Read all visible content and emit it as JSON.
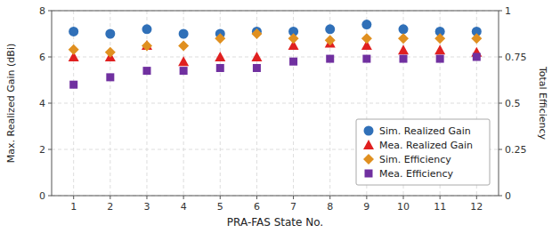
{
  "chart_data": {
    "type": "scatter",
    "xlabel": "PRA-FAS State No.",
    "ylabel": "Max. Realized Gain (dBi)",
    "y2label": "Total Efficiency",
    "x": [
      1,
      2,
      3,
      4,
      5,
      6,
      7,
      8,
      9,
      10,
      11,
      12
    ],
    "series": [
      {
        "name": "Sim. Realized Gain",
        "color": "#3070b8",
        "marker": "circle",
        "axis": "y",
        "values": [
          7.1,
          7.0,
          7.2,
          7.0,
          7.0,
          7.1,
          7.1,
          7.2,
          7.4,
          7.2,
          7.1,
          7.1
        ]
      },
      {
        "name": "Mea. Realized Gain",
        "color": "#e02020",
        "marker": "triangle",
        "axis": "y",
        "values": [
          6.0,
          6.0,
          6.5,
          5.8,
          6.0,
          6.0,
          6.5,
          6.6,
          6.5,
          6.3,
          6.3,
          6.2
        ]
      },
      {
        "name": "Sim. Efficiency",
        "color": "#e09020",
        "marker": "diamond",
        "axis": "y2",
        "values": [
          0.79,
          0.775,
          0.81,
          0.81,
          0.85,
          0.875,
          0.85,
          0.84,
          0.85,
          0.85,
          0.85,
          0.85
        ]
      },
      {
        "name": "Mea. Efficiency",
        "color": "#7030a0",
        "marker": "square",
        "axis": "y2",
        "values": [
          0.6,
          0.64,
          0.675,
          0.675,
          0.69,
          0.69,
          0.725,
          0.74,
          0.74,
          0.74,
          0.74,
          0.75
        ]
      }
    ],
    "xlim": [
      0.4,
      12.6
    ],
    "xticks": [
      1,
      2,
      3,
      4,
      5,
      6,
      7,
      8,
      9,
      10,
      11,
      12
    ],
    "ylim": [
      0,
      8
    ],
    "yticks": [
      0,
      2,
      4,
      6,
      8
    ],
    "y2lim": [
      0,
      1
    ],
    "y2ticks": [
      0,
      0.25,
      0.5,
      0.75,
      1
    ],
    "grid": true,
    "legend": "right"
  }
}
